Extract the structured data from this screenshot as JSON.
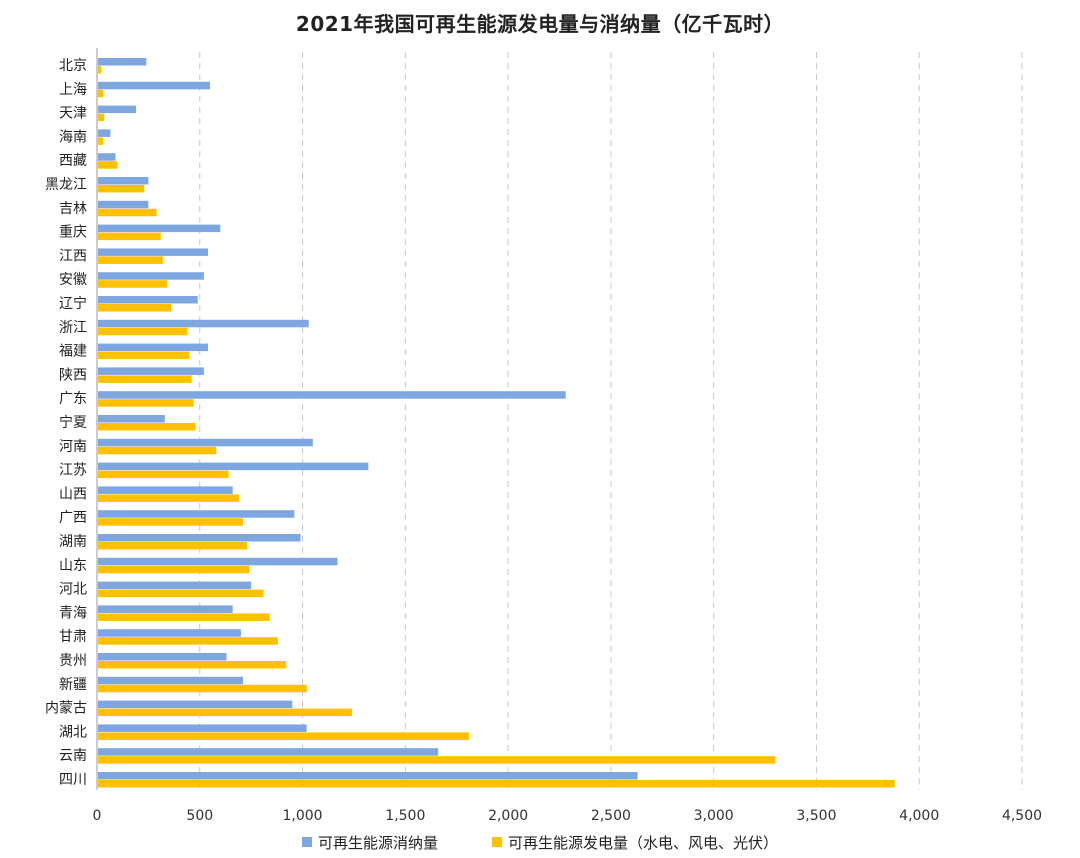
{
  "chart_data": {
    "type": "bar",
    "orientation": "horizontal",
    "title": "2021年我国可再生能源发电量与消纳量（亿千瓦时）",
    "categories": [
      "北京",
      "上海",
      "天津",
      "海南",
      "西藏",
      "黑龙江",
      "吉林",
      "重庆",
      "江西",
      "安徽",
      "辽宁",
      "浙江",
      "福建",
      "陕西",
      "广东",
      "宁夏",
      "河南",
      "江苏",
      "山西",
      "广西",
      "湖南",
      "山东",
      "河北",
      "青海",
      "甘肃",
      "贵州",
      "新疆",
      "内蒙古",
      "湖北",
      "云南",
      "四川"
    ],
    "series": [
      {
        "name": "可再生能源消纳量",
        "color": "#7ea6e0",
        "values": [
          240,
          550,
          190,
          65,
          90,
          250,
          250,
          600,
          540,
          520,
          490,
          1030,
          540,
          520,
          2280,
          330,
          1050,
          1320,
          660,
          960,
          990,
          1170,
          750,
          660,
          700,
          630,
          710,
          950,
          1020,
          1660,
          2630
        ]
      },
      {
        "name": "可再生能源发电量（水电、风电、光伏）",
        "color": "#ffc000",
        "values": [
          20,
          30,
          35,
          30,
          100,
          230,
          290,
          310,
          320,
          340,
          360,
          440,
          450,
          460,
          470,
          480,
          580,
          640,
          690,
          710,
          730,
          740,
          810,
          840,
          880,
          920,
          1020,
          1240,
          1810,
          3300,
          3880
        ]
      }
    ],
    "xlim": [
      0,
      4500
    ],
    "xticks": [
      "0",
      "500",
      "1,000",
      "1,500",
      "2,000",
      "2,500",
      "3,000",
      "3,500",
      "4,000",
      "4,500"
    ],
    "grid": "vertical dashed",
    "legend_position": "bottom"
  }
}
